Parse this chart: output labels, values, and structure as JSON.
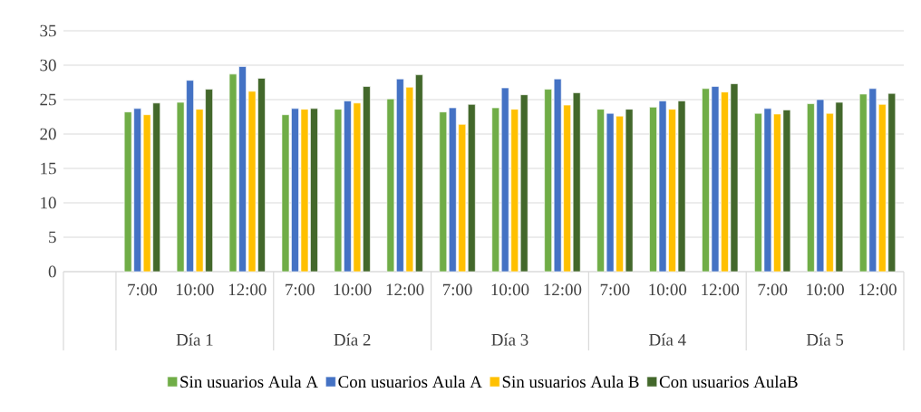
{
  "chart_data": {
    "type": "bar",
    "categories": [
      null,
      "7:00",
      "10:00",
      "12:00",
      "7:00",
      "10:00",
      "12:00",
      "7:00",
      "10:00",
      "12:00",
      "7:00",
      "10:00",
      "12:00",
      "7:00",
      "10:00",
      "12:00"
    ],
    "series": [
      {
        "name": "Sin usuarios Aula A",
        "color": "#70ad47",
        "values": [
          null,
          23.2,
          24.6,
          28.7,
          22.8,
          23.6,
          25.1,
          23.2,
          23.8,
          26.5,
          23.6,
          23.9,
          26.6,
          23.0,
          24.4,
          25.8
        ]
      },
      {
        "name": "Con usuarios Aula A",
        "color": "#4472c4",
        "values": [
          null,
          23.7,
          27.8,
          29.8,
          23.7,
          24.8,
          28.0,
          23.8,
          26.7,
          28.0,
          23.0,
          24.8,
          26.9,
          23.7,
          25.0,
          26.6
        ]
      },
      {
        "name": "Sin usuarios Aula B",
        "color": "#ffc000",
        "values": [
          null,
          22.8,
          23.6,
          26.2,
          23.6,
          24.5,
          26.8,
          21.4,
          23.6,
          24.2,
          22.6,
          23.6,
          26.1,
          22.9,
          23.0,
          24.3
        ]
      },
      {
        "name": "Con usuarios AulaB",
        "color": "#43682b",
        "values": [
          null,
          24.5,
          26.5,
          28.1,
          23.7,
          26.9,
          28.6,
          24.3,
          25.7,
          26.0,
          23.6,
          24.8,
          27.3,
          23.5,
          24.6,
          25.9
        ]
      }
    ],
    "annotations": [
      "Día 1",
      "Día 2",
      "Día 3",
      "Día 4",
      "Día 5"
    ],
    "ylim": [
      0,
      35
    ],
    "yticks": [
      0,
      5,
      10,
      15,
      20,
      25,
      30,
      35
    ],
    "grid": "y",
    "legend": "bottom"
  }
}
